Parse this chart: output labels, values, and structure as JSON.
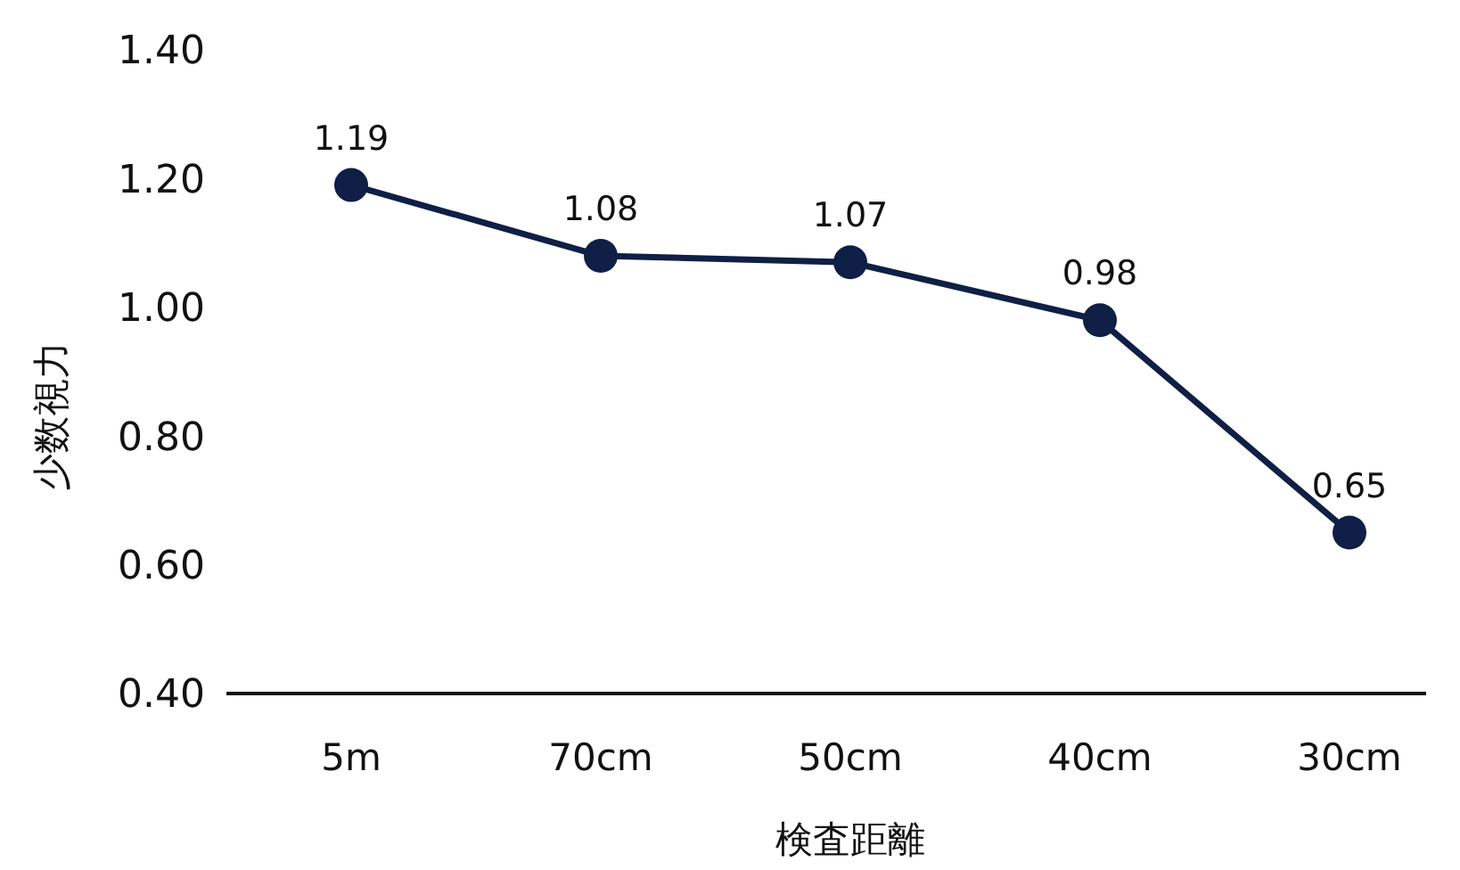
{
  "chart_data": {
    "type": "line",
    "xlabel": "検査距離",
    "ylabel": "少数視力",
    "categories": [
      "5m",
      "70cm",
      "50cm",
      "40cm",
      "30cm"
    ],
    "series": [
      {
        "color": "#0f1f45",
        "values": [
          1.19,
          1.08,
          1.07,
          0.98,
          0.65
        ]
      }
    ],
    "ylim": [
      0.4,
      1.4
    ],
    "yticks": [
      {
        "value": 0.4,
        "label": "0.40"
      },
      {
        "value": 0.6,
        "label": "0.60"
      },
      {
        "value": 0.8,
        "label": "0.80"
      },
      {
        "value": 1.0,
        "label": "1.00"
      },
      {
        "value": 1.2,
        "label": "1.20"
      },
      {
        "value": 1.4,
        "label": "1.40"
      }
    ],
    "marker": "circle",
    "line_style": "solid",
    "data_labels": true
  }
}
